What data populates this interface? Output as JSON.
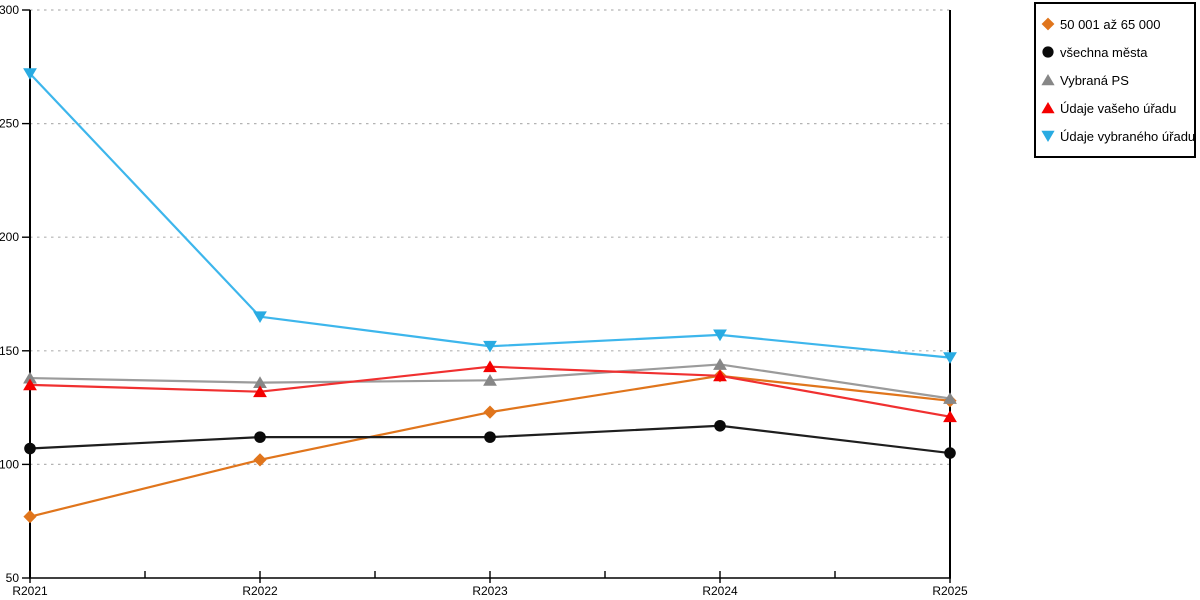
{
  "chart_data": {
    "type": "line",
    "title": "",
    "xlabel": "",
    "ylabel": "",
    "categories": [
      "R2021",
      "R2022",
      "R2023",
      "R2024",
      "R2025"
    ],
    "y_axis": {
      "min": 50,
      "max": 300,
      "tick_step": 50,
      "tick_labels": [
        "50",
        "100",
        "150",
        "200",
        "250",
        "300"
      ]
    },
    "grid": {
      "horizontal": "dotted",
      "levels": [
        100,
        150,
        200,
        250,
        300
      ]
    },
    "legend_position": "top-right",
    "series": [
      {
        "name": "50 001 až 65 000",
        "marker": "diamond",
        "color": "#E0751C",
        "line_color": "#E0751C",
        "values": [
          77,
          102,
          123,
          139,
          128
        ]
      },
      {
        "name": "všechna města",
        "marker": "circle",
        "color": "#0A0A0A",
        "line_color": "#1E1E1E",
        "values": [
          107,
          112,
          112,
          117,
          105
        ]
      },
      {
        "name": "Vybraná PS",
        "marker": "triangle-up",
        "color": "#878787",
        "line_color": "#9B9B9B",
        "values": [
          138,
          136,
          137,
          144,
          129
        ]
      },
      {
        "name": "Údaje vašeho úřadu",
        "marker": "triangle-up",
        "color": "#F40000",
        "line_color": "#F03030",
        "values": [
          135,
          132,
          143,
          139,
          121
        ]
      },
      {
        "name": "Údaje vybraného úřadu",
        "marker": "triangle-down",
        "color": "#29ABE2",
        "line_color": "#3DB6EC",
        "values": [
          272,
          165,
          152,
          157,
          147
        ]
      }
    ]
  },
  "colors": {
    "background": "#FFFFFF",
    "axis": "#000000",
    "grid": "#B3B3B3",
    "tick_text": "#000000",
    "legend_border": "#000000"
  }
}
